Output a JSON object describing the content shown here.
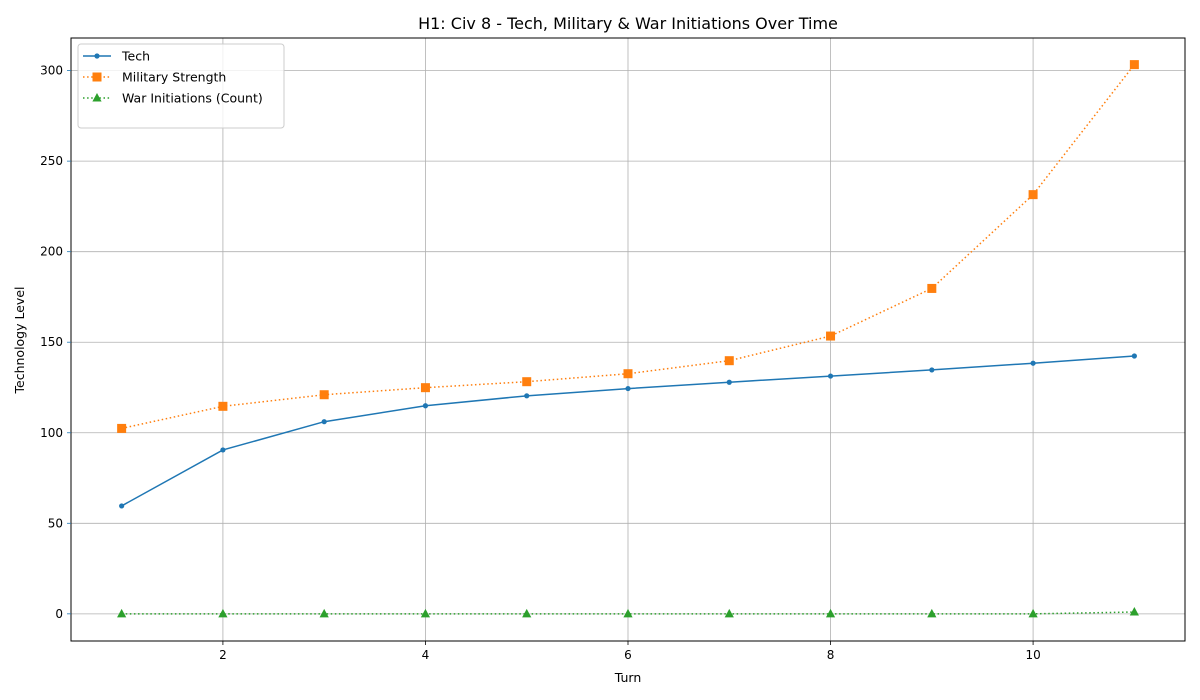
{
  "chart_data": {
    "type": "line",
    "title": "H1: Civ 8 - Tech, Military & War Initiations Over Time",
    "xlabel": "Turn",
    "ylabel": "Technology Level",
    "x": [
      1,
      2,
      3,
      4,
      5,
      6,
      7,
      8,
      9,
      10,
      11
    ],
    "xlim": [
      0.5,
      11.5
    ],
    "ylim": [
      -15,
      318
    ],
    "x_ticks": [
      2,
      4,
      6,
      8,
      10
    ],
    "y_ticks": [
      0,
      50,
      100,
      150,
      200,
      250,
      300
    ],
    "grid": true,
    "legend_position": "top-left",
    "series": [
      {
        "name": "Tech",
        "values": [
          59.6,
          90.5,
          106.1,
          114.9,
          120.4,
          124.4,
          127.9,
          131.3,
          134.7,
          138.4,
          142.4
        ],
        "color": "#1f77b4",
        "line_style": "solid",
        "marker": "circle"
      },
      {
        "name": "Military Strength",
        "values": [
          102.4,
          114.6,
          121.0,
          124.9,
          128.2,
          132.6,
          139.8,
          153.4,
          179.7,
          231.5,
          303.3
        ],
        "color": "#ff7f0e",
        "line_style": "dotted",
        "marker": "square"
      },
      {
        "name": "War Initiations (Count)",
        "values": [
          0,
          0,
          0,
          0,
          0,
          0,
          0,
          0,
          0,
          0,
          1
        ],
        "color": "#2ca02c",
        "line_style": "dotted",
        "marker": "triangle"
      }
    ],
    "ylabel_color": "#1f77b4",
    "ytick_color": "#1f77b4"
  }
}
